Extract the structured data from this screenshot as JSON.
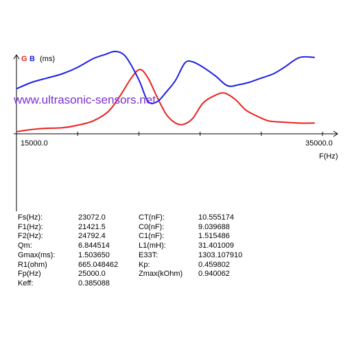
{
  "legend": {
    "g": "G",
    "b": "B",
    "unit": "(ms)"
  },
  "watermark": "www.ultrasonic-sensors.net",
  "colors": {
    "g": "#e8201c",
    "b": "#1c1ce8",
    "watermark": "#7b2fd0",
    "axis": "#000000"
  },
  "chart_data": {
    "type": "line",
    "xlabel": "F(Hz)",
    "ylabel": "(ms)",
    "xlim": [
      15000,
      35000
    ],
    "x_tick_labels": [
      "15000.0",
      "35000.0"
    ],
    "ylim": [
      0,
      2.0
    ],
    "grid": false,
    "legend_placement": "top-left",
    "series": [
      {
        "name": "G",
        "x": [
          15000,
          16000,
          17000,
          18000,
          19000,
          20000,
          21000,
          21800,
          22500,
          23072,
          23600,
          24200,
          24800,
          25400,
          25900,
          26500,
          27200,
          28000,
          28600,
          29300,
          30000,
          30800,
          31500,
          32500,
          33500,
          34500
        ],
        "y": [
          0.05,
          0.1,
          0.13,
          0.14,
          0.2,
          0.3,
          0.52,
          0.9,
          1.3,
          1.5,
          1.3,
          0.85,
          0.45,
          0.25,
          0.22,
          0.35,
          0.72,
          0.9,
          0.95,
          0.8,
          0.55,
          0.4,
          0.3,
          0.27,
          0.25,
          0.25
        ]
      },
      {
        "name": "B",
        "x": [
          15000,
          16000,
          17000,
          18000,
          19000,
          20000,
          20800,
          21421.5,
          22000,
          22500,
          23072,
          23600,
          24200,
          24800,
          25400,
          26000,
          26500,
          27200,
          28000,
          28800,
          29600,
          30200,
          31000,
          31800,
          32500,
          33500,
          34500
        ],
        "y": [
          1.05,
          1.2,
          1.3,
          1.4,
          1.55,
          1.75,
          1.85,
          1.92,
          1.85,
          1.6,
          1.2,
          0.75,
          0.75,
          0.98,
          1.25,
          1.65,
          1.68,
          1.55,
          1.35,
          1.12,
          1.15,
          1.2,
          1.3,
          1.4,
          1.55,
          1.78,
          1.78
        ]
      }
    ]
  },
  "params": [
    [
      "Fs(Hz):",
      "23072.0",
      "CT(nF):",
      "10.555174"
    ],
    [
      "F1(Hz):",
      "21421.5",
      "C0(nF):",
      "9.039688"
    ],
    [
      "F2(Hz):",
      "24792.4",
      "C1(nF):",
      "1.515486"
    ],
    [
      "Qm:",
      "6.844514",
      "L1(mH):",
      "31.401009"
    ],
    [
      "Gmax(ms):",
      "1.503650",
      "E33T:",
      "1303.107910"
    ],
    [
      "R1(ohm)",
      "665.048462",
      "Kp:",
      "0.459802"
    ],
    [
      "Fp(Hz)",
      "25000.0",
      "Zmax(kOhm)",
      "0.940062"
    ],
    [
      "Keff:",
      "0.385088",
      "",
      ""
    ]
  ]
}
